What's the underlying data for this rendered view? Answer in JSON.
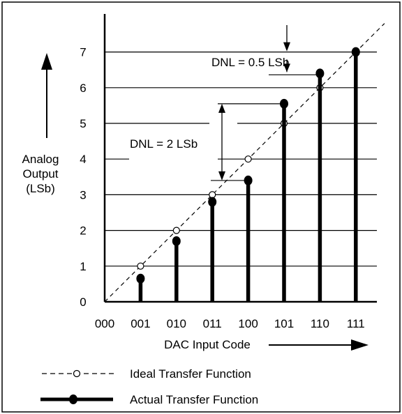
{
  "chart_data": {
    "type": "bar",
    "xlabel": "DAC Input Code",
    "ylabel_lines": [
      "Analog",
      "Output",
      "(LSb)"
    ],
    "categories": [
      "000",
      "001",
      "010",
      "011",
      "100",
      "101",
      "110",
      "111"
    ],
    "yticks": [
      "0",
      "1",
      "2",
      "3",
      "4",
      "5",
      "6",
      "7"
    ],
    "ylim": [
      0,
      7.9
    ],
    "grid": true,
    "series": [
      {
        "name": "Ideal Transfer Function",
        "style": "dashed-line-open-markers",
        "values": [
          0,
          1,
          2,
          3,
          4,
          5,
          6,
          7
        ]
      },
      {
        "name": "Actual Transfer Function",
        "style": "thick-stems-filled-markers",
        "values": [
          0,
          0.65,
          1.7,
          2.8,
          3.4,
          5.55,
          6.4,
          7.0
        ]
      }
    ],
    "annotations": [
      {
        "text": "DNL = 2 LSb",
        "between": [
          3.4,
          5.55
        ]
      },
      {
        "text": "DNL = 0.5 LSb",
        "between": [
          6.4,
          7.0
        ]
      }
    ],
    "legend_position": "bottom-left"
  },
  "colors": {
    "line": "#000000",
    "background": "#ffffff"
  }
}
